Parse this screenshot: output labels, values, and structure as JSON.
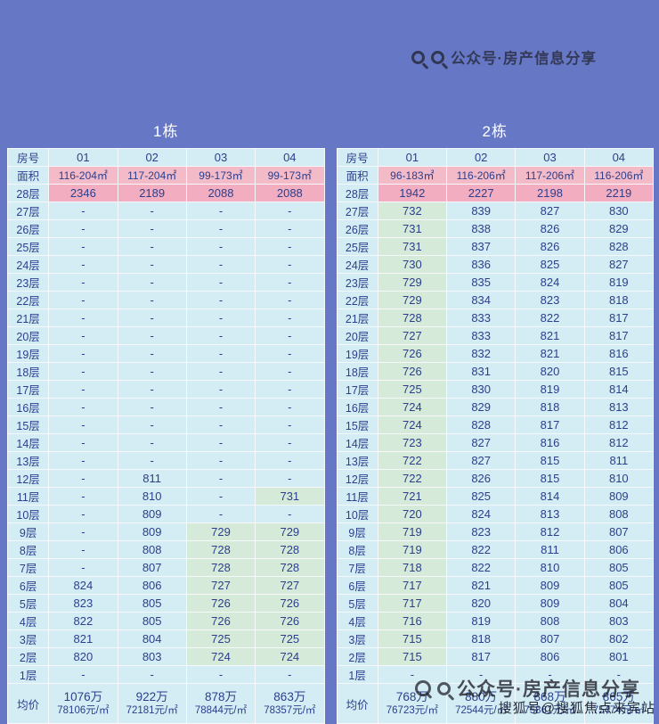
{
  "background": "#6677c6",
  "palette": {
    "cell_blue": "#d4edf4",
    "cell_green": "#d5ead9",
    "pink_area": "#f3bac8",
    "pink_top": "#f2aec0",
    "text_navy": "#2b3f8c",
    "border": "#ffffff"
  },
  "watermarks": {
    "top_text": "公众号·房产信息分享",
    "bottom_text": "公众号·房产信息分享",
    "souhu_text": "搜狐号@搜狐焦点来宾站"
  },
  "chart_data": {
    "type": "table",
    "tables": [
      {
        "title": "1栋",
        "corner_label": "房号",
        "area_label": "面积",
        "avg_label": "均价",
        "columns": [
          "01",
          "02",
          "03",
          "04"
        ],
        "areas": [
          "116-204㎡",
          "117-204㎡",
          "99-173㎡",
          "99-173㎡"
        ],
        "floors": [
          {
            "label": "28层",
            "highlight": true,
            "cells": [
              "2346",
              "2189",
              "2088",
              "2088"
            ]
          },
          {
            "label": "27层",
            "cells": [
              "-",
              "-",
              "-",
              "-"
            ]
          },
          {
            "label": "26层",
            "cells": [
              "-",
              "-",
              "-",
              "-"
            ]
          },
          {
            "label": "25层",
            "cells": [
              "-",
              "-",
              "-",
              "-"
            ]
          },
          {
            "label": "24层",
            "cells": [
              "-",
              "-",
              "-",
              "-"
            ]
          },
          {
            "label": "23层",
            "cells": [
              "-",
              "-",
              "-",
              "-"
            ]
          },
          {
            "label": "22层",
            "cells": [
              "-",
              "-",
              "-",
              "-"
            ]
          },
          {
            "label": "21层",
            "cells": [
              "-",
              "-",
              "-",
              "-"
            ]
          },
          {
            "label": "20层",
            "cells": [
              "-",
              "-",
              "-",
              "-"
            ]
          },
          {
            "label": "19层",
            "cells": [
              "-",
              "-",
              "-",
              "-"
            ]
          },
          {
            "label": "18层",
            "cells": [
              "-",
              "-",
              "-",
              "-"
            ]
          },
          {
            "label": "17层",
            "cells": [
              "-",
              "-",
              "-",
              "-"
            ]
          },
          {
            "label": "16层",
            "cells": [
              "-",
              "-",
              "-",
              "-"
            ]
          },
          {
            "label": "15层",
            "cells": [
              "-",
              "-",
              "-",
              "-"
            ]
          },
          {
            "label": "14层",
            "cells": [
              "-",
              "-",
              "-",
              "-"
            ]
          },
          {
            "label": "13层",
            "cells": [
              "-",
              "-",
              "-",
              "-"
            ]
          },
          {
            "label": "12层",
            "cells": [
              "-",
              "811",
              "-",
              "-"
            ]
          },
          {
            "label": "11层",
            "cells": [
              "-",
              "810",
              "-",
              "731"
            ]
          },
          {
            "label": "10层",
            "cells": [
              "-",
              "809",
              "-",
              "-"
            ]
          },
          {
            "label": "9层",
            "cells": [
              "-",
              "809",
              "729",
              "729"
            ]
          },
          {
            "label": "8层",
            "cells": [
              "-",
              "808",
              "728",
              "728"
            ]
          },
          {
            "label": "7层",
            "cells": [
              "-",
              "807",
              "728",
              "728"
            ]
          },
          {
            "label": "6层",
            "cells": [
              "824",
              "806",
              "727",
              "727"
            ]
          },
          {
            "label": "5层",
            "cells": [
              "823",
              "805",
              "726",
              "726"
            ]
          },
          {
            "label": "4层",
            "cells": [
              "822",
              "805",
              "726",
              "726"
            ]
          },
          {
            "label": "3层",
            "cells": [
              "821",
              "804",
              "725",
              "725"
            ]
          },
          {
            "label": "2层",
            "cells": [
              "820",
              "803",
              "724",
              "724"
            ]
          },
          {
            "label": "1层",
            "cells": [
              "-",
              "-",
              "-",
              "-"
            ]
          }
        ],
        "averages": [
          {
            "price": "1076万",
            "unit": "78106元/㎡"
          },
          {
            "price": "922万",
            "unit": "72181元/㎡"
          },
          {
            "price": "878万",
            "unit": "78844元/㎡"
          },
          {
            "price": "863万",
            "unit": "78357元/㎡"
          }
        ]
      },
      {
        "title": "2栋",
        "corner_label": "房号",
        "area_label": "面积",
        "avg_label": "均价",
        "columns": [
          "01",
          "02",
          "03",
          "04"
        ],
        "areas": [
          "96-183㎡",
          "116-206㎡",
          "117-206㎡",
          "116-206㎡"
        ],
        "floors": [
          {
            "label": "28层",
            "highlight": true,
            "cells": [
              "1942",
              "2227",
              "2198",
              "2219"
            ]
          },
          {
            "label": "27层",
            "cells": [
              "732",
              "839",
              "827",
              "830"
            ]
          },
          {
            "label": "26层",
            "cells": [
              "731",
              "838",
              "826",
              "829"
            ]
          },
          {
            "label": "25层",
            "cells": [
              "731",
              "837",
              "826",
              "828"
            ]
          },
          {
            "label": "24层",
            "cells": [
              "730",
              "836",
              "825",
              "827"
            ]
          },
          {
            "label": "23层",
            "cells": [
              "729",
              "835",
              "824",
              "819"
            ]
          },
          {
            "label": "22层",
            "cells": [
              "729",
              "834",
              "823",
              "818"
            ]
          },
          {
            "label": "21层",
            "cells": [
              "728",
              "833",
              "822",
              "817"
            ]
          },
          {
            "label": "20层",
            "cells": [
              "727",
              "833",
              "821",
              "817"
            ]
          },
          {
            "label": "19层",
            "cells": [
              "726",
              "832",
              "821",
              "816"
            ]
          },
          {
            "label": "18层",
            "cells": [
              "726",
              "831",
              "820",
              "815"
            ]
          },
          {
            "label": "17层",
            "cells": [
              "725",
              "830",
              "819",
              "814"
            ]
          },
          {
            "label": "16层",
            "cells": [
              "724",
              "829",
              "818",
              "813"
            ]
          },
          {
            "label": "15层",
            "cells": [
              "724",
              "828",
              "817",
              "812"
            ]
          },
          {
            "label": "14层",
            "cells": [
              "723",
              "827",
              "816",
              "812"
            ]
          },
          {
            "label": "13层",
            "cells": [
              "722",
              "827",
              "815",
              "811"
            ]
          },
          {
            "label": "12层",
            "cells": [
              "722",
              "826",
              "815",
              "810"
            ]
          },
          {
            "label": "11层",
            "cells": [
              "721",
              "825",
              "814",
              "809"
            ]
          },
          {
            "label": "10层",
            "cells": [
              "720",
              "824",
              "813",
              "808"
            ]
          },
          {
            "label": "9层",
            "cells": [
              "719",
              "823",
              "812",
              "807"
            ]
          },
          {
            "label": "8层",
            "cells": [
              "719",
              "822",
              "811",
              "806"
            ]
          },
          {
            "label": "7层",
            "cells": [
              "718",
              "822",
              "810",
              "805"
            ]
          },
          {
            "label": "6层",
            "cells": [
              "717",
              "821",
              "809",
              "805"
            ]
          },
          {
            "label": "5层",
            "cells": [
              "717",
              "820",
              "809",
              "804"
            ]
          },
          {
            "label": "4层",
            "cells": [
              "716",
              "819",
              "808",
              "803"
            ]
          },
          {
            "label": "3层",
            "cells": [
              "715",
              "818",
              "807",
              "802"
            ]
          },
          {
            "label": "2层",
            "cells": [
              "715",
              "817",
              "806",
              "801"
            ]
          },
          {
            "label": "1层",
            "cells": [
              "-",
              "-",
              "-",
              "-"
            ]
          }
        ],
        "averages": [
          {
            "price": "768万",
            "unit": "76723元/㎡"
          },
          {
            "price": "880万",
            "unit": "72544元/㎡"
          },
          {
            "price": "868万",
            "unit": "75861元/㎡"
          },
          {
            "price": "865万",
            "unit": "75474元/㎡"
          }
        ]
      }
    ]
  }
}
